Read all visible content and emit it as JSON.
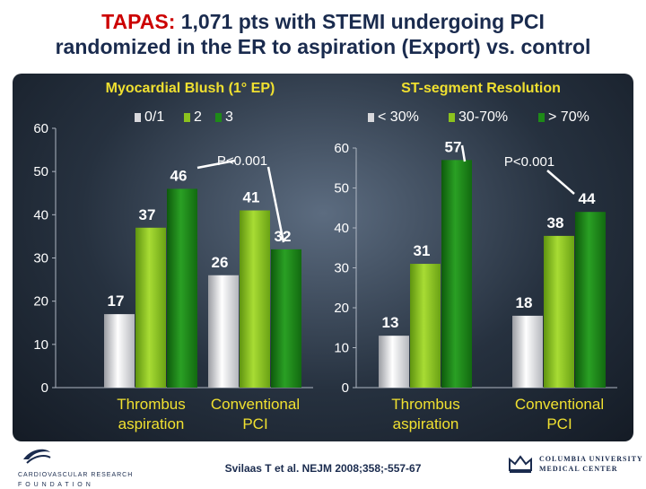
{
  "title": {
    "highlight": "TAPAS:",
    "line1_rest": " 1,071 pts with STEMI undergoing PCI",
    "line2": "randomized in the ER to aspiration (Export) vs. control"
  },
  "citation": "Svilaas T et al. NEJM 2008;358;-557-67",
  "logos": {
    "left_text_1": "CARDIOVASCULAR RESEARCH",
    "left_text_2": "F O U N D A T I O N",
    "right_text_1": "COLUMBIA UNIVERSITY",
    "right_text_2": "MEDICAL CENTER"
  },
  "colors": {
    "white": "#e8e8ea",
    "lime": "#8cc21e",
    "green": "#1e8a18",
    "title": "#1a2b4e",
    "accent": "#cc0000",
    "subtitle": "#f0e030"
  },
  "chart_data": [
    {
      "type": "bar",
      "title": "Myocardial Blush (1° EP)",
      "categories": [
        "Thrombus\naspiration",
        "Conventional\nPCI"
      ],
      "series": [
        {
          "name": "0/1",
          "color": "white",
          "values": [
            17,
            26
          ]
        },
        {
          "name": "2",
          "color": "lime",
          "values": [
            37,
            41
          ]
        },
        {
          "name": "3",
          "color": "green",
          "values": [
            46,
            32
          ]
        }
      ],
      "yticks": [
        0,
        10,
        20,
        30,
        40,
        50,
        60
      ],
      "ylim": [
        0,
        60
      ],
      "annotation": "P<0.001",
      "legend": "top"
    },
    {
      "type": "bar",
      "title": "ST-segment Resolution",
      "categories": [
        "Thrombus\naspiration",
        "Conventional\nPCI"
      ],
      "series": [
        {
          "name": "< 30%",
          "color": "white",
          "values": [
            13,
            18
          ]
        },
        {
          "name": "30-70%",
          "color": "lime",
          "values": [
            31,
            38
          ]
        },
        {
          "name": "> 70%",
          "color": "green",
          "values": [
            57,
            44
          ]
        }
      ],
      "yticks": [
        0,
        10,
        20,
        30,
        40,
        50,
        60
      ],
      "ylim": [
        0,
        60
      ],
      "annotation": "P<0.001",
      "legend": "top"
    }
  ]
}
